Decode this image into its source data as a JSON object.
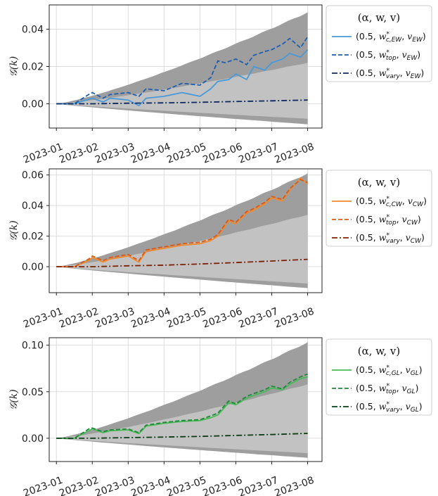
{
  "chart_data": [
    {
      "type": "line",
      "ylabel": "𝒢(k)",
      "ylim": [
        -0.013,
        0.053
      ],
      "yticks": [
        0.0,
        0.02,
        0.04
      ],
      "ytick_labels": [
        "0.00",
        "0.02",
        "0.04"
      ],
      "x_categories": [
        "2023-01",
        "2023-02",
        "2023-03",
        "2023-04",
        "2023-05",
        "2023-06",
        "2023-07",
        "2023-08"
      ],
      "xlim": [
        -0.2,
        7.4
      ],
      "band_outer": {
        "upper_end": 0.049,
        "lower_end": -0.011
      },
      "band_inner": {
        "upper_end": 0.022,
        "lower_end": -0.008
      },
      "legend": {
        "title": "(α, w, v)",
        "entries": [
          {
            "label": "(0.5, w*c,EW, vEW)",
            "color": "#4a9ad8",
            "style": "solid"
          },
          {
            "label": "(0.5, w*top, vEW)",
            "color": "#1f5fb0",
            "style": "dashed"
          },
          {
            "label": "(0.5, w*vary, vEW)",
            "color": "#0c2a5e",
            "style": "dashdot"
          }
        ]
      },
      "series": [
        {
          "name": "(0.5, w*c,EW, vEW)",
          "color": "#4a9ad8",
          "style": "solid",
          "x": [
            0.0,
            0.5,
            1.0,
            1.3,
            1.5,
            2.0,
            2.3,
            2.5,
            3.0,
            3.5,
            4.0,
            4.3,
            4.5,
            4.8,
            5.0,
            5.3,
            5.5,
            5.8,
            6.0,
            6.3,
            6.5,
            6.8,
            7.0
          ],
          "values": [
            0.0,
            0.0,
            0.003,
            0.001,
            0.003,
            0.002,
            -0.001,
            0.003,
            0.004,
            0.006,
            0.004,
            0.008,
            0.012,
            0.013,
            0.016,
            0.013,
            0.02,
            0.018,
            0.022,
            0.024,
            0.027,
            0.025,
            0.029
          ]
        },
        {
          "name": "(0.5, w*top, vEW)",
          "color": "#1f5fb0",
          "style": "dashed",
          "x": [
            0.0,
            0.5,
            0.9,
            1.0,
            1.3,
            1.5,
            2.0,
            2.3,
            2.5,
            3.0,
            3.5,
            4.0,
            4.3,
            4.5,
            4.7,
            5.0,
            5.3,
            5.5,
            5.8,
            6.0,
            6.3,
            6.5,
            6.8,
            7.0
          ],
          "values": [
            0.0,
            0.0,
            0.005,
            0.006,
            0.003,
            0.005,
            0.006,
            0.004,
            0.008,
            0.007,
            0.011,
            0.01,
            0.014,
            0.023,
            0.022,
            0.024,
            0.021,
            0.026,
            0.028,
            0.029,
            0.032,
            0.035,
            0.03,
            0.036
          ]
        },
        {
          "name": "(0.5, w*vary, vEW)",
          "color": "#0c2a5e",
          "style": "dashdot",
          "x": [
            0.0,
            1.0,
            2.0,
            3.0,
            4.0,
            5.0,
            6.0,
            7.0
          ],
          "values": [
            0.0,
            0.0,
            0.0003,
            0.0005,
            0.0008,
            0.0012,
            0.0016,
            0.002
          ]
        }
      ]
    },
    {
      "type": "line",
      "ylabel": "𝒢(k)",
      "ylim": [
        -0.017,
        0.064
      ],
      "yticks": [
        0.0,
        0.02,
        0.04,
        0.06
      ],
      "ytick_labels": [
        "0.00",
        "0.02",
        "0.04",
        "0.06"
      ],
      "x_categories": [
        "2023-01",
        "2023-02",
        "2023-03",
        "2023-04",
        "2023-05",
        "2023-06",
        "2023-07",
        "2023-08"
      ],
      "xlim": [
        -0.2,
        7.4
      ],
      "band_outer": {
        "upper_end": 0.061,
        "lower_end": -0.014
      },
      "band_inner": {
        "upper_end": 0.034,
        "lower_end": -0.011
      },
      "legend": {
        "title": "(α, w, v)",
        "entries": [
          {
            "label": "(0.5, w*c,CW, vCW)",
            "color": "#f08a30",
            "style": "solid"
          },
          {
            "label": "(0.5, w*top, vCW)",
            "color": "#d95a18",
            "style": "dashed"
          },
          {
            "label": "(0.5, w*vary, vCW)",
            "color": "#7a2308",
            "style": "dashdot"
          }
        ]
      },
      "series": [
        {
          "name": "(0.5, w*c,CW, vCW)",
          "color": "#f08a30",
          "style": "solid",
          "x": [
            0.0,
            0.5,
            0.9,
            1.0,
            1.3,
            1.5,
            2.0,
            2.3,
            2.5,
            3.0,
            3.5,
            4.0,
            4.3,
            4.5,
            4.8,
            5.0,
            5.3,
            5.5,
            5.8,
            6.0,
            6.3,
            6.5,
            6.8,
            7.0
          ],
          "values": [
            0.0,
            0.0,
            0.004,
            0.006,
            0.003,
            0.005,
            0.007,
            0.003,
            0.01,
            0.012,
            0.014,
            0.015,
            0.017,
            0.02,
            0.03,
            0.028,
            0.035,
            0.037,
            0.041,
            0.045,
            0.043,
            0.05,
            0.058,
            0.054
          ]
        },
        {
          "name": "(0.5, w*top, vCW)",
          "color": "#d95a18",
          "style": "dashed",
          "x": [
            0.0,
            0.5,
            0.9,
            1.0,
            1.3,
            1.5,
            2.0,
            2.3,
            2.5,
            3.0,
            3.5,
            4.0,
            4.3,
            4.5,
            4.8,
            5.0,
            5.3,
            5.5,
            5.8,
            6.0,
            6.3,
            6.5,
            6.8,
            7.0
          ],
          "values": [
            0.0,
            0.0,
            0.005,
            0.007,
            0.004,
            0.006,
            0.008,
            0.004,
            0.011,
            0.013,
            0.015,
            0.016,
            0.018,
            0.021,
            0.031,
            0.029,
            0.036,
            0.038,
            0.042,
            0.046,
            0.044,
            0.051,
            0.057,
            0.055
          ]
        },
        {
          "name": "(0.5, w*vary, vCW)",
          "color": "#7a2308",
          "style": "dashdot",
          "x": [
            0.0,
            1.0,
            2.0,
            3.0,
            4.0,
            5.0,
            6.0,
            7.0
          ],
          "values": [
            0.0,
            0.0,
            0.0006,
            0.001,
            0.0018,
            0.0027,
            0.0037,
            0.0048
          ]
        }
      ]
    },
    {
      "type": "line",
      "ylabel": "𝒢(k)",
      "ylim": [
        -0.025,
        0.108
      ],
      "yticks": [
        0.0,
        0.05,
        0.1
      ],
      "ytick_labels": [
        "0.00",
        "0.05",
        "0.10"
      ],
      "x_categories": [
        "2023-01",
        "2023-02",
        "2023-03",
        "2023-04",
        "2023-05",
        "2023-06",
        "2023-07",
        "2023-08"
      ],
      "xlim": [
        -0.2,
        7.4
      ],
      "band_outer": {
        "upper_end": 0.103,
        "lower_end": -0.021
      },
      "band_inner": {
        "upper_end": 0.058,
        "lower_end": -0.016
      },
      "legend": {
        "title": "(α, w, v)",
        "entries": [
          {
            "label": "(0.5, w*c,GL, vGL)",
            "color": "#4db85a",
            "style": "solid"
          },
          {
            "label": "(0.5, w*top, vGL)",
            "color": "#1f8a36",
            "style": "dashed"
          },
          {
            "label": "(0.5, w*vary, vGL)",
            "color": "#0b3d16",
            "style": "dashdot"
          }
        ]
      },
      "series": [
        {
          "name": "(0.5, w*c,GL, vGL)",
          "color": "#4db85a",
          "style": "solid",
          "x": [
            0.0,
            0.5,
            0.9,
            1.0,
            1.3,
            1.5,
            2.0,
            2.3,
            2.5,
            3.0,
            3.5,
            4.0,
            4.3,
            4.5,
            4.8,
            5.0,
            5.3,
            5.5,
            5.8,
            6.0,
            6.3,
            6.5,
            6.8,
            7.0
          ],
          "values": [
            0.0,
            0.0,
            0.008,
            0.01,
            0.006,
            0.008,
            0.009,
            0.005,
            0.013,
            0.016,
            0.018,
            0.019,
            0.022,
            0.025,
            0.038,
            0.036,
            0.043,
            0.046,
            0.05,
            0.054,
            0.052,
            0.058,
            0.064,
            0.066
          ]
        },
        {
          "name": "(0.5, w*top, vGL)",
          "color": "#1f8a36",
          "style": "dashed",
          "x": [
            0.0,
            0.5,
            0.9,
            1.0,
            1.3,
            1.5,
            2.0,
            2.3,
            2.5,
            3.0,
            3.5,
            4.0,
            4.3,
            4.5,
            4.8,
            5.0,
            5.3,
            5.5,
            5.8,
            6.0,
            6.3,
            6.5,
            6.8,
            7.0
          ],
          "values": [
            0.0,
            0.0,
            0.01,
            0.011,
            0.007,
            0.009,
            0.01,
            0.006,
            0.014,
            0.017,
            0.019,
            0.02,
            0.024,
            0.027,
            0.04,
            0.037,
            0.045,
            0.048,
            0.052,
            0.056,
            0.053,
            0.06,
            0.066,
            0.069
          ]
        },
        {
          "name": "(0.5, w*vary, vGL)",
          "color": "#0b3d16",
          "style": "dashdot",
          "x": [
            0.0,
            1.0,
            2.0,
            3.0,
            4.0,
            5.0,
            6.0,
            7.0
          ],
          "values": [
            0.0,
            0.0,
            0.0007,
            0.0013,
            0.002,
            0.003,
            0.004,
            0.0052
          ]
        }
      ]
    }
  ]
}
